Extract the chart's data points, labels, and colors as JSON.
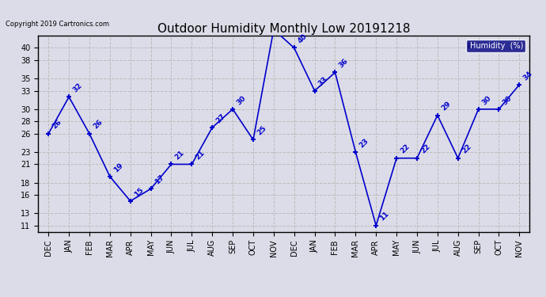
{
  "title": "Outdoor Humidity Monthly Low 20191218",
  "copyright_text": "Copyright 2019 Cartronics.com",
  "legend_label": "Humidity  (%)",
  "months": [
    "DEC",
    "JAN",
    "FEB",
    "MAR",
    "APR",
    "MAY",
    "JUN",
    "JUL",
    "AUG",
    "SEP",
    "OCT",
    "NOV",
    "DEC",
    "JAN",
    "FEB",
    "MAR",
    "APR",
    "MAY",
    "JUN",
    "JUL",
    "AUG",
    "SEP",
    "OCT",
    "NOV"
  ],
  "values": [
    26,
    32,
    26,
    19,
    15,
    17,
    21,
    21,
    27,
    30,
    25,
    43,
    40,
    33,
    36,
    23,
    11,
    22,
    22,
    29,
    22,
    30,
    30,
    34
  ],
  "line_color": "#0000cc",
  "marker": "+",
  "marker_size": 5,
  "line_width": 1.2,
  "ylim": [
    10,
    42
  ],
  "yticks": [
    11,
    13,
    16,
    18,
    21,
    23,
    26,
    28,
    30,
    33,
    35,
    38,
    40
  ],
  "title_fontsize": 11,
  "tick_fontsize": 7,
  "grid_color": "#bbbbbb",
  "grid_style": "--",
  "background_color": "#dcdce8",
  "legend_bg": "#000080",
  "legend_text_color": "#ffffff",
  "annotation_color": "#0000cc",
  "annotation_fontsize": 6.5,
  "figwidth": 6.9,
  "figheight": 3.75,
  "dpi": 100
}
